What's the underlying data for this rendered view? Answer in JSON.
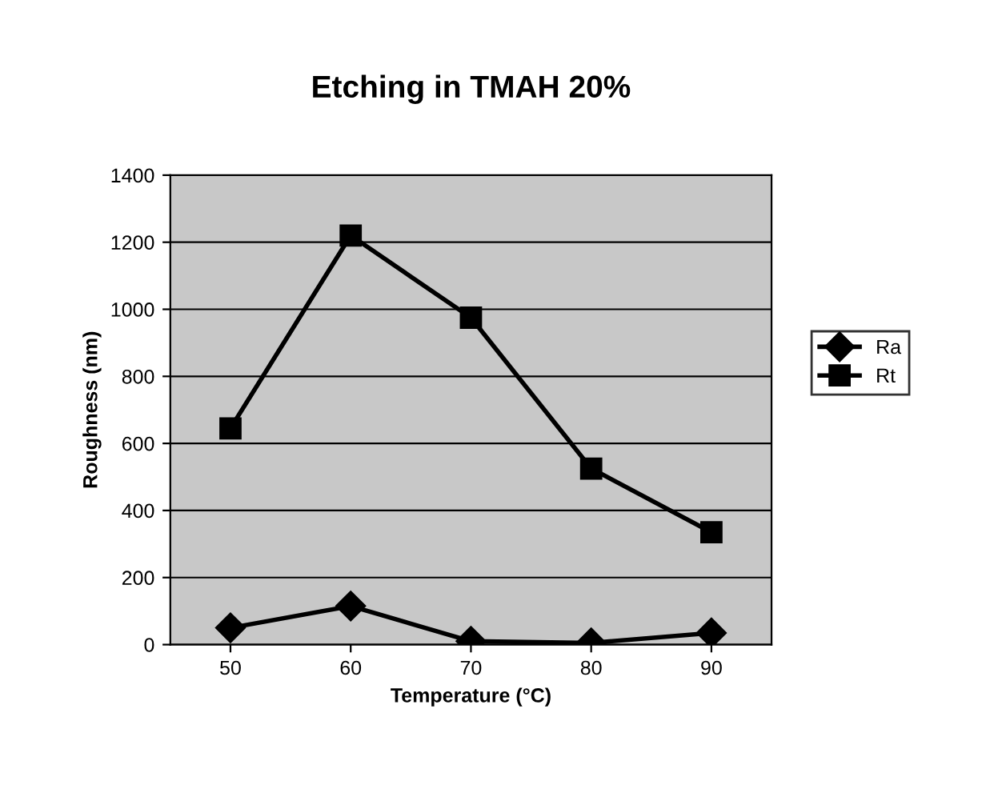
{
  "chart_data": {
    "type": "line",
    "title": "Etching in TMAH 20%",
    "xlabel": "Temperature (°C)",
    "ylabel": "Roughness (nm)",
    "categories": [
      "50",
      "60",
      "70",
      "80",
      "90"
    ],
    "series": [
      {
        "name": "Ra",
        "color": "#000000",
        "marker": "diamond",
        "values": [
          50,
          115,
          10,
          5,
          35
        ]
      },
      {
        "name": "Rt",
        "color": "#000000",
        "marker": "square",
        "values": [
          645,
          1220,
          975,
          525,
          335
        ]
      }
    ],
    "ylim": [
      0,
      1400
    ],
    "yticks": [
      0,
      200,
      400,
      600,
      800,
      1000,
      1200,
      1400
    ],
    "grid": "y",
    "legend": "right",
    "line_style": "solid"
  }
}
